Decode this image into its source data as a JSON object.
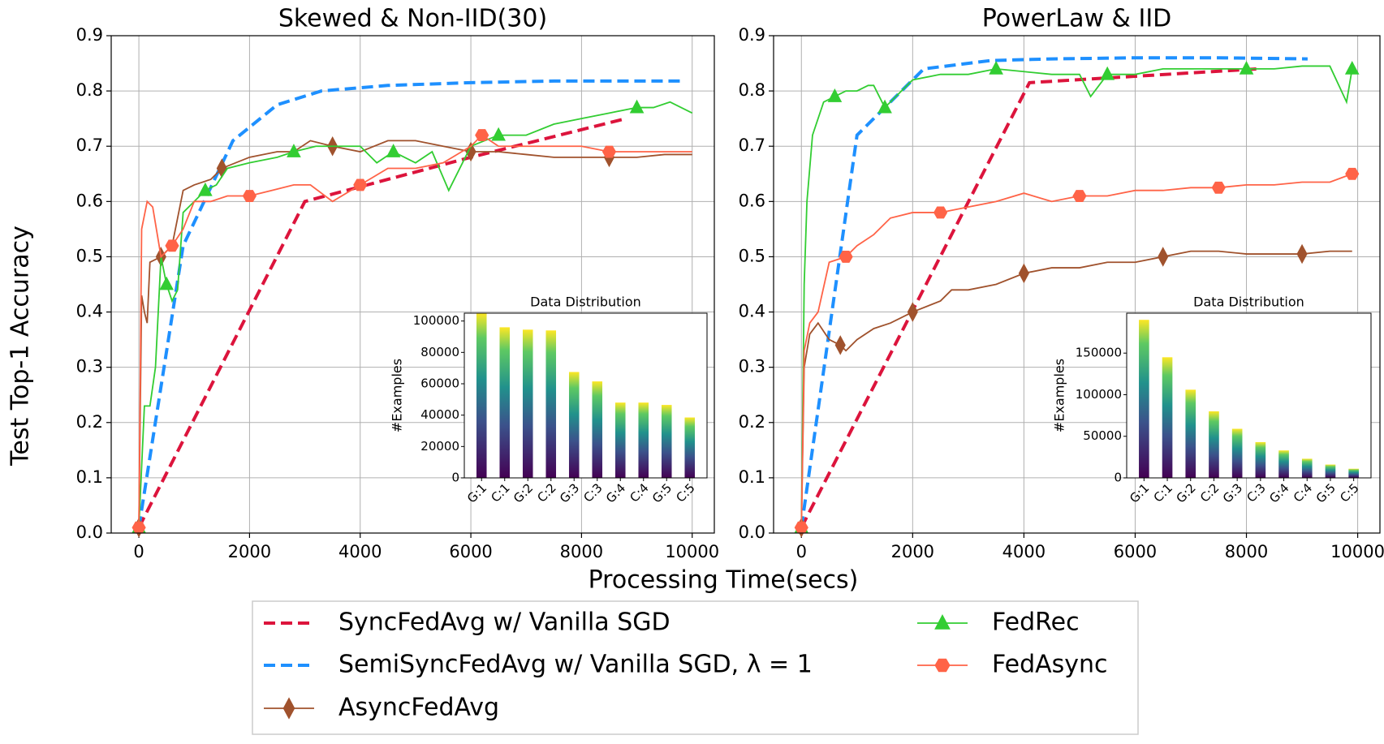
{
  "figure": {
    "xlabel": "Processing Time(secs)",
    "ylabel": "Test Top-1 Accuracy"
  },
  "chart_data": [
    {
      "type": "line",
      "title": "Skewed & Non-IID(30)",
      "xlim": [
        -500,
        10400
      ],
      "ylim": [
        0,
        0.9
      ],
      "xticks": [
        0,
        2000,
        4000,
        6000,
        8000,
        10000
      ],
      "yticks": [
        {
          "value": 0,
          "label": "0.0"
        },
        0.1,
        0.2,
        0.3,
        0.4,
        0.5,
        0.6,
        0.7,
        0.8,
        0.9
      ],
      "grid": true,
      "series": [
        {
          "name": "SyncFedAvg w/ Vanilla SGD",
          "color": "#dc143c",
          "dash": true,
          "marker": null,
          "x": [
            0,
            3000,
            6000,
            8800
          ],
          "values": [
            0.01,
            0.6,
            0.68,
            0.75
          ]
        },
        {
          "name": "SemiSyncFedAvg w/ Vanilla SGD, λ = 1",
          "color": "#1e90ff",
          "dash": true,
          "marker": null,
          "x": [
            0,
            800,
            1700,
            2500,
            3300,
            4500,
            6000,
            7500,
            9800
          ],
          "values": [
            0.01,
            0.52,
            0.71,
            0.775,
            0.8,
            0.81,
            0.815,
            0.818,
            0.818
          ]
        },
        {
          "name": "AsyncFedAvg",
          "color": "#a0522d",
          "dash": false,
          "marker": "diamond",
          "x": [
            0,
            50,
            100,
            150,
            200,
            400,
            600,
            800,
            1000,
            1300,
            1500,
            2000,
            2500,
            2800,
            3100,
            3500,
            4000,
            4500,
            5000,
            5500,
            6000,
            6500,
            7000,
            7500,
            8000,
            8500,
            9000,
            9500,
            10000
          ],
          "values": [
            0.01,
            0.43,
            0.4,
            0.38,
            0.49,
            0.5,
            0.52,
            0.62,
            0.63,
            0.64,
            0.66,
            0.68,
            0.69,
            0.69,
            0.71,
            0.7,
            0.69,
            0.71,
            0.71,
            0.7,
            0.69,
            0.69,
            0.685,
            0.68,
            0.68,
            0.68,
            0.68,
            0.685,
            0.685
          ]
        },
        {
          "name": "FedRec",
          "color": "#32cd32",
          "dash": false,
          "marker": "triangle",
          "x": [
            0,
            100,
            200,
            300,
            400,
            500,
            600,
            700,
            800,
            1000,
            1200,
            1400,
            1600,
            2000,
            2500,
            2800,
            3200,
            3600,
            4000,
            4300,
            4600,
            5000,
            5300,
            5600,
            6000,
            6500,
            7000,
            7500,
            8000,
            8500,
            9000,
            9300,
            9600,
            10000
          ],
          "values": [
            0.01,
            0.23,
            0.23,
            0.3,
            0.5,
            0.45,
            0.42,
            0.44,
            0.58,
            0.6,
            0.62,
            0.63,
            0.66,
            0.67,
            0.68,
            0.69,
            0.7,
            0.7,
            0.7,
            0.67,
            0.69,
            0.67,
            0.69,
            0.62,
            0.7,
            0.72,
            0.72,
            0.74,
            0.75,
            0.76,
            0.77,
            0.77,
            0.78,
            0.76
          ]
        },
        {
          "name": "FedAsync",
          "color": "#ff6347",
          "dash": false,
          "marker": "hexagon",
          "x": [
            0,
            50,
            150,
            250,
            400,
            600,
            800,
            1000,
            1300,
            1600,
            2000,
            2400,
            2800,
            3100,
            3500,
            4000,
            4500,
            5000,
            5500,
            6000,
            6200,
            6500,
            7000,
            7500,
            8000,
            8500,
            9000,
            9500,
            10000
          ],
          "values": [
            0.01,
            0.55,
            0.6,
            0.59,
            0.5,
            0.52,
            0.55,
            0.6,
            0.6,
            0.61,
            0.61,
            0.62,
            0.63,
            0.63,
            0.6,
            0.63,
            0.66,
            0.66,
            0.67,
            0.7,
            0.72,
            0.7,
            0.7,
            0.7,
            0.7,
            0.69,
            0.69,
            0.69,
            0.69
          ]
        }
      ]
    },
    {
      "type": "bar",
      "title": "Data Distribution",
      "ylabel": "#Examples",
      "categories": [
        "G:1",
        "C:1",
        "G:2",
        "C:2",
        "G:3",
        "C:3",
        "G:4",
        "C:4",
        "G:5",
        "C:5"
      ],
      "values": [
        105000,
        96000,
        94500,
        94000,
        67500,
        61500,
        48000,
        48000,
        46500,
        38500
      ],
      "ylim": [
        0,
        105000
      ],
      "yticks": [
        0,
        20000,
        40000,
        60000,
        80000,
        100000
      ]
    },
    {
      "type": "line",
      "title": "PowerLaw & IID",
      "xlim": [
        -500,
        10400
      ],
      "ylim": [
        0,
        0.9
      ],
      "xticks": [
        0,
        2000,
        4000,
        6000,
        8000,
        10000
      ],
      "yticks": [
        {
          "value": 0,
          "label": "0.0"
        },
        0.1,
        0.2,
        0.3,
        0.4,
        0.5,
        0.6,
        0.7,
        0.8,
        0.9
      ],
      "grid": true,
      "series": [
        {
          "name": "SyncFedAvg w/ Vanilla SGD",
          "color": "#dc143c",
          "dash": true,
          "marker": null,
          "x": [
            0,
            4100,
            8200
          ],
          "values": [
            0.01,
            0.815,
            0.84
          ]
        },
        {
          "name": "SemiSyncFedAvg w/ Vanilla SGD, λ = 1",
          "color": "#1e90ff",
          "dash": true,
          "marker": null,
          "x": [
            0,
            1000,
            2200,
            3400,
            4500,
            6000,
            7500,
            9100
          ],
          "values": [
            0.01,
            0.72,
            0.84,
            0.855,
            0.858,
            0.86,
            0.86,
            0.858
          ]
        },
        {
          "name": "AsyncFedAvg",
          "color": "#a0522d",
          "dash": false,
          "marker": "diamond",
          "x": [
            0,
            50,
            150,
            300,
            500,
            700,
            800,
            1000,
            1300,
            1600,
            2000,
            2500,
            2700,
            3000,
            3500,
            4000,
            4500,
            5000,
            5500,
            6000,
            6500,
            7000,
            7500,
            8000,
            8500,
            9000,
            9500,
            9900
          ],
          "values": [
            0.01,
            0.3,
            0.36,
            0.38,
            0.35,
            0.34,
            0.33,
            0.35,
            0.37,
            0.38,
            0.4,
            0.42,
            0.44,
            0.44,
            0.45,
            0.47,
            0.48,
            0.48,
            0.49,
            0.49,
            0.5,
            0.51,
            0.51,
            0.505,
            0.505,
            0.505,
            0.51,
            0.51
          ]
        },
        {
          "name": "FedRec",
          "color": "#32cd32",
          "dash": false,
          "marker": "triangle",
          "x": [
            0,
            50,
            100,
            200,
            400,
            600,
            800,
            1000,
            1200,
            1300,
            1500,
            1700,
            2000,
            2500,
            3000,
            3500,
            4000,
            4500,
            5000,
            5200,
            5500,
            6000,
            6500,
            7000,
            7500,
            8000,
            8500,
            9000,
            9500,
            9800,
            9900
          ],
          "values": [
            0.01,
            0.45,
            0.6,
            0.72,
            0.78,
            0.79,
            0.8,
            0.8,
            0.81,
            0.81,
            0.77,
            0.79,
            0.82,
            0.83,
            0.83,
            0.84,
            0.835,
            0.83,
            0.83,
            0.79,
            0.83,
            0.83,
            0.84,
            0.84,
            0.84,
            0.84,
            0.84,
            0.845,
            0.845,
            0.78,
            0.84
          ]
        },
        {
          "name": "FedAsync",
          "color": "#ff6347",
          "dash": false,
          "marker": "hexagon",
          "x": [
            0,
            50,
            150,
            300,
            500,
            800,
            1000,
            1300,
            1600,
            2000,
            2500,
            3000,
            3500,
            4000,
            4500,
            5000,
            5500,
            6000,
            6500,
            7000,
            7500,
            8000,
            8500,
            9000,
            9500,
            9900
          ],
          "values": [
            0.01,
            0.33,
            0.38,
            0.4,
            0.49,
            0.5,
            0.52,
            0.54,
            0.57,
            0.58,
            0.58,
            0.59,
            0.6,
            0.615,
            0.6,
            0.61,
            0.61,
            0.62,
            0.62,
            0.625,
            0.625,
            0.63,
            0.63,
            0.635,
            0.635,
            0.65
          ]
        }
      ]
    },
    {
      "type": "bar",
      "title": "Data Distribution",
      "ylabel": "#Examples",
      "categories": [
        "G:1",
        "C:1",
        "G:2",
        "C:2",
        "G:3",
        "C:3",
        "G:4",
        "C:4",
        "G:5",
        "C:5"
      ],
      "values": [
        190000,
        145000,
        106000,
        80000,
        59000,
        43000,
        33000,
        23000,
        16000,
        11000
      ],
      "ylim": [
        0,
        198000
      ],
      "yticks": [
        0,
        50000,
        100000,
        150000
      ]
    }
  ]
}
